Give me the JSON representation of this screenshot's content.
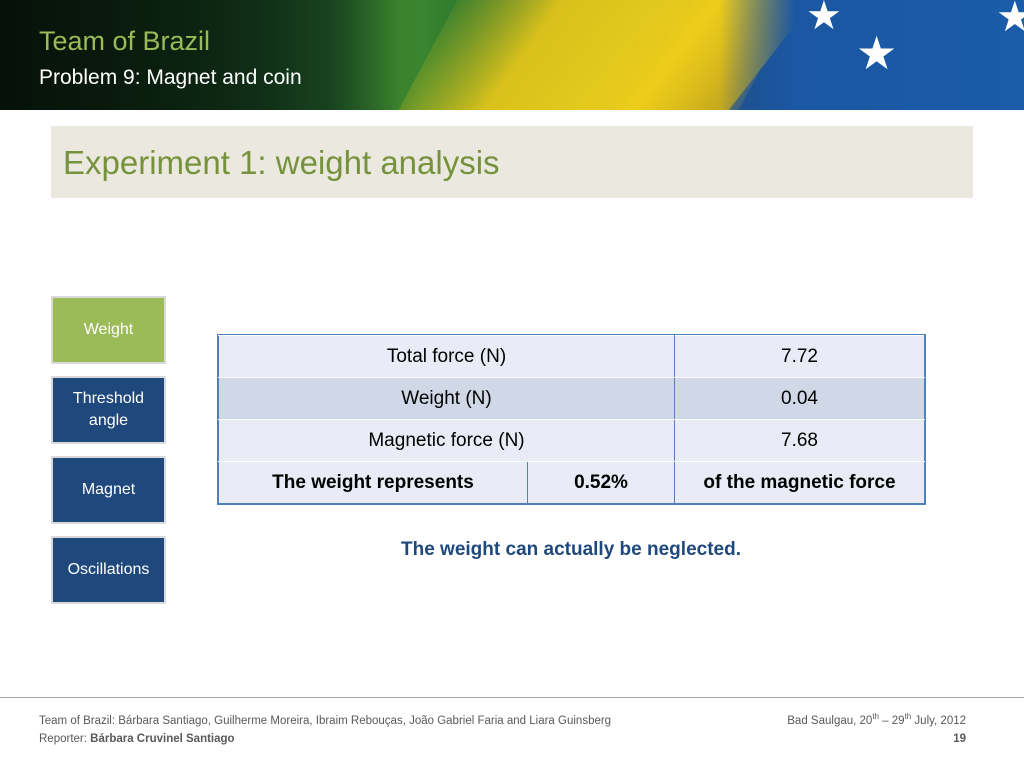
{
  "header": {
    "title": "Team of Brazil",
    "subtitle": "Problem 9: Magnet and coin"
  },
  "slide": {
    "title": "Experiment 1: weight analysis"
  },
  "nav": {
    "items": [
      {
        "label": "Weight",
        "active": true
      },
      {
        "label": "Threshold angle",
        "active": false
      },
      {
        "label": "Magnet",
        "active": false
      },
      {
        "label": "Oscillations",
        "active": false
      }
    ]
  },
  "table": {
    "rows": [
      {
        "label": "Total force (N)",
        "value": "7.72"
      },
      {
        "label": "Weight (N)",
        "value": "0.04"
      },
      {
        "label": "Magnetic force (N)",
        "value": "7.68"
      }
    ],
    "summary": {
      "lead": "The weight represents",
      "percent": "0.52%",
      "tail": "of the magnetic force"
    }
  },
  "conclusion": "The weight can actually be neglected.",
  "footer": {
    "team": "Team of Brazil: Bárbara Santiago, Guilherme Moreira, Ibraim Rebouças, João Gabriel Faria and Liara Guinsberg",
    "reporter_label": "Reporter: ",
    "reporter_name": "Bárbara Cruvinel Santiago",
    "place": "Bad Saulgau, 20",
    "date_sup1": "th",
    "date_mid": " – 29",
    "date_sup2": "th",
    "date_end": " July, 2012",
    "page": "19"
  },
  "colors": {
    "accent_green": "#9bbb59",
    "title_green": "#76923c",
    "nav_blue": "#1f497d",
    "table_border": "#4f81bd"
  }
}
